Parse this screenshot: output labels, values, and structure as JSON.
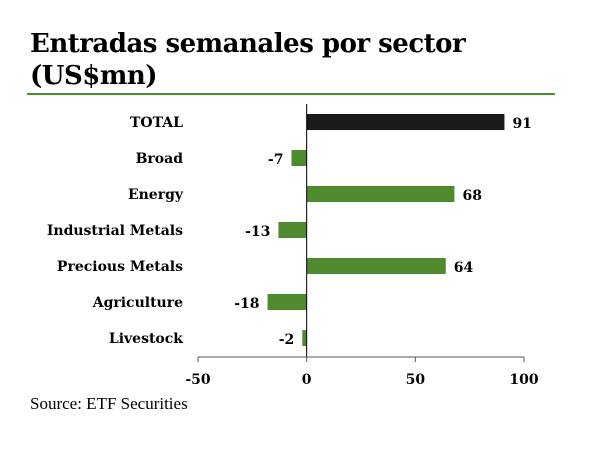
{
  "title": "Entradas semanales por sector (US$mn)",
  "source": "Source: ETF Securities",
  "colors": {
    "total": "#1a1a1a",
    "sector": "#4f8a2f",
    "rule": "#4f8a2f"
  },
  "chart_data": {
    "type": "bar",
    "orientation": "horizontal",
    "title": "Entradas semanales por sector (US$mn)",
    "categories": [
      "TOTAL",
      "Broad",
      "Energy",
      "Industrial Metals",
      "Precious Metals",
      "Agriculture",
      "Livestock"
    ],
    "values": [
      91,
      -7,
      68,
      -13,
      64,
      -18,
      -2
    ],
    "xlim": [
      -50,
      100
    ],
    "xticks": [
      -50,
      0,
      50,
      100
    ],
    "xtick_labels": [
      "-50",
      "0",
      "50",
      "100"
    ],
    "xlabel": "",
    "ylabel": "",
    "grid": false
  }
}
